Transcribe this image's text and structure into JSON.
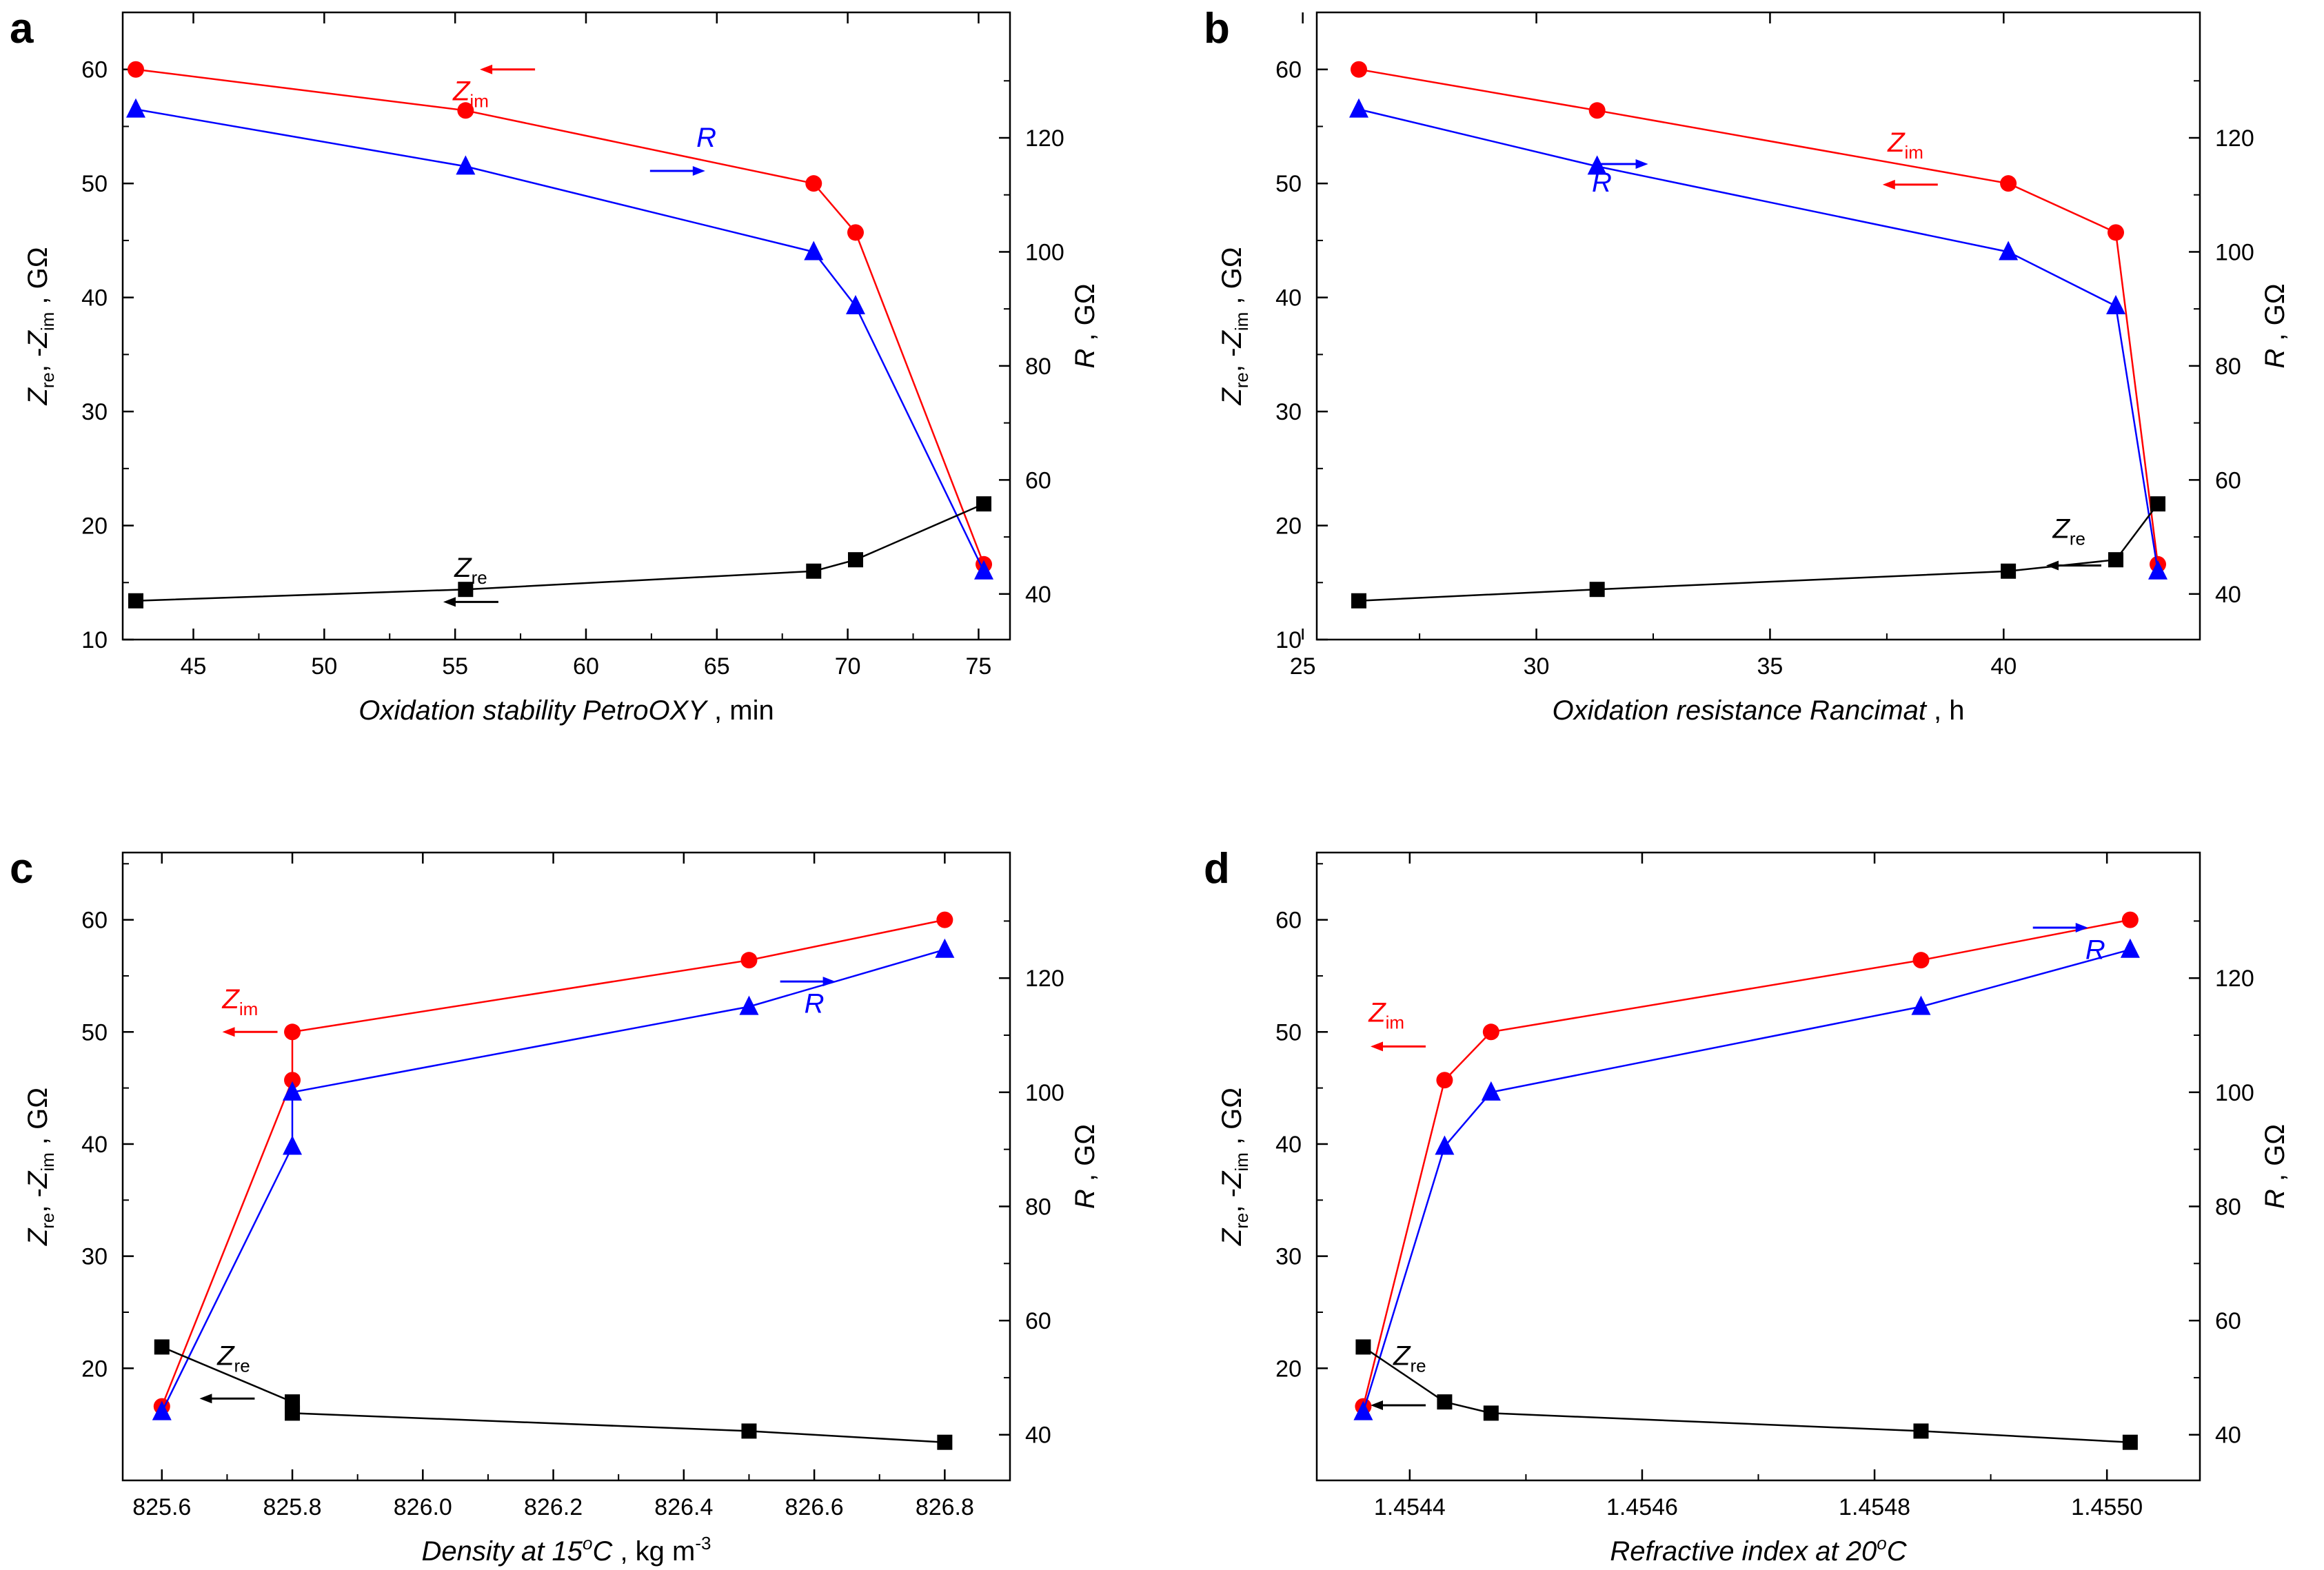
{
  "chart_data": [
    {
      "type": "line",
      "panel_label": "a",
      "xlabel": {
        "main": "Oxidation stability PetroOXY",
        "unit": "min"
      },
      "ylabel_left": {
        "sym": "Z",
        "sub": "re",
        "text2": ", -",
        "sym2": "Z",
        "sub2": "im",
        "unit": "GΩ"
      },
      "ylabel_right": {
        "sym": "R",
        "unit": "GΩ"
      },
      "xlim": [
        42.3,
        76.2
      ],
      "xticks": [
        45,
        50,
        55,
        60,
        65,
        70,
        75
      ],
      "xtick_labels": [
        "45",
        "50",
        "55",
        "60",
        "65",
        "70",
        "75"
      ],
      "ylim": [
        10,
        65
      ],
      "yticks": [
        10,
        20,
        30,
        40,
        50,
        60
      ],
      "y2lim": [
        32,
        142
      ],
      "y2ticks": [
        40,
        60,
        80,
        100,
        120
      ],
      "series": [
        {
          "name": "Zim",
          "color": "#ff0000",
          "marker": "circle",
          "axis": "left",
          "x": [
            42.8,
            55.4,
            68.7,
            70.3,
            75.2
          ],
          "y": [
            60,
            56.4,
            50,
            45.7,
            16.6
          ]
        },
        {
          "name": "R",
          "color": "#0000ff",
          "marker": "triangle",
          "axis": "right",
          "x": [
            42.8,
            55.4,
            68.7,
            70.3,
            75.2
          ],
          "y": [
            125,
            115,
            100,
            90.5,
            44
          ]
        },
        {
          "name": "Zre",
          "color": "#000000",
          "marker": "square",
          "axis": "left",
          "x": [
            42.8,
            55.4,
            68.7,
            70.3,
            75.2
          ],
          "y": [
            13.4,
            14.4,
            16,
            17,
            21.9
          ]
        }
      ],
      "annotations": [
        {
          "sym": "Z",
          "sub": "im",
          "color": "#ff0000",
          "x": 55.6,
          "y": 57.3,
          "arrow": "left",
          "ax": 57,
          "ay": 60
        },
        {
          "sym": "R",
          "sub": "",
          "color": "#0000ff",
          "x": 64.6,
          "y": 53.2,
          "arrow": "right",
          "ax": 63.5,
          "ay": 51.1
        },
        {
          "sym": "Z",
          "sub": "re",
          "color": "#000000",
          "x": 55.6,
          "y": 15.5,
          "arrow": "left",
          "ax": 55.6,
          "ay": 13.3
        }
      ]
    },
    {
      "type": "line",
      "panel_label": "b",
      "xlabel": {
        "main": "Oxidation resistance Rancimat",
        "unit": "h"
      },
      "ylabel_left": {
        "sym": "Z",
        "sub": "re",
        "text2": ", -",
        "sym2": "Z",
        "sub2": "im",
        "unit": "GΩ"
      },
      "ylabel_right": {
        "sym": "R",
        "unit": "GΩ"
      },
      "xlim": [
        25.3,
        44.2
      ],
      "xticks": [
        25,
        30,
        35,
        40
      ],
      "xtick_labels": [
        "25",
        "30",
        "35",
        "40"
      ],
      "ylim": [
        10,
        65
      ],
      "yticks": [
        10,
        20,
        30,
        40,
        50,
        60
      ],
      "y2lim": [
        32,
        142
      ],
      "y2ticks": [
        40,
        60,
        80,
        100,
        120
      ],
      "series": [
        {
          "name": "Zim",
          "color": "#ff0000",
          "marker": "circle",
          "axis": "left",
          "x": [
            26.2,
            31.3,
            40.1,
            42.4,
            43.3
          ],
          "y": [
            60,
            56.4,
            50,
            45.7,
            16.6
          ]
        },
        {
          "name": "R",
          "color": "#0000ff",
          "marker": "triangle",
          "axis": "right",
          "x": [
            26.2,
            31.3,
            40.1,
            42.4,
            43.3
          ],
          "y": [
            125,
            115,
            100,
            90.5,
            44
          ]
        },
        {
          "name": "Zre",
          "color": "#000000",
          "marker": "square",
          "axis": "left",
          "x": [
            26.2,
            31.3,
            40.1,
            42.4,
            43.3
          ],
          "y": [
            13.4,
            14.4,
            16,
            17,
            21.9
          ]
        }
      ],
      "annotations": [
        {
          "sym": "Z",
          "sub": "im",
          "color": "#ff0000",
          "x": 37.9,
          "y": 52.8,
          "arrow": "left",
          "ax": 38.0,
          "ay": 49.9
        },
        {
          "sym": "R",
          "sub": "",
          "color": "#0000ff",
          "x": 31.4,
          "y": 49.3,
          "arrow": "right",
          "ax": 31.8,
          "ay": 51.7
        },
        {
          "sym": "Z",
          "sub": "re",
          "color": "#000000",
          "x": 41.4,
          "y": 18.9,
          "arrow": "left",
          "ax": 41.5,
          "ay": 16.5
        }
      ]
    },
    {
      "type": "line",
      "panel_label": "c",
      "xlabel": {
        "main": "Density at 15",
        "sup": "o",
        "main2": "C",
        "unit": "kg m",
        "unit_sup": "-3"
      },
      "ylabel_left": {
        "sym": "Z",
        "sub": "re",
        "text2": ", -",
        "sym2": "Z",
        "sub2": "im",
        "unit": "GΩ"
      },
      "ylabel_right": {
        "sym": "R",
        "unit": "GΩ"
      },
      "xlim": [
        825.54,
        826.9
      ],
      "xticks": [
        825.6,
        825.8,
        826.0,
        826.2,
        826.4,
        826.6,
        826.8
      ],
      "xtick_labels": [
        "825.6",
        "825.8",
        "826.0",
        "826.2",
        "826.4",
        "826.6",
        "826.8"
      ],
      "ylim": [
        10,
        66
      ],
      "yticks": [
        20,
        30,
        40,
        50,
        60
      ],
      "y2lim": [
        32,
        142
      ],
      "y2ticks": [
        40,
        60,
        80,
        100,
        120
      ],
      "series": [
        {
          "name": "Zim",
          "color": "#ff0000",
          "marker": "circle",
          "axis": "left",
          "x": [
            825.6,
            825.8,
            825.8,
            826.5,
            826.8
          ],
          "y": [
            16.6,
            45.7,
            50,
            56.4,
            60
          ]
        },
        {
          "name": "R",
          "color": "#0000ff",
          "marker": "triangle",
          "axis": "right",
          "x": [
            825.6,
            825.8,
            825.8,
            826.5,
            826.8
          ],
          "y": [
            44,
            90.5,
            100,
            115,
            125
          ]
        },
        {
          "name": "Zre",
          "color": "#000000",
          "marker": "square",
          "axis": "left",
          "x": [
            825.6,
            825.8,
            825.8,
            826.5,
            826.8
          ],
          "y": [
            21.9,
            17,
            16,
            14.4,
            13.4
          ]
        }
      ],
      "annotations": [
        {
          "sym": "Z",
          "sub": "im",
          "color": "#ff0000",
          "x": 825.72,
          "y": 52.1,
          "arrow": "left",
          "ax": 825.735,
          "ay": 50
        },
        {
          "sym": "R",
          "sub": "",
          "color": "#0000ff",
          "x": 826.6,
          "y": 51.7,
          "arrow": "right",
          "ax": 826.59,
          "ay": 54.5
        },
        {
          "sym": "Z",
          "sub": "re",
          "color": "#000000",
          "x": 825.71,
          "y": 20.3,
          "arrow": "left",
          "ax": 825.7,
          "ay": 17.3
        }
      ]
    },
    {
      "type": "line",
      "panel_label": "d",
      "xlabel": {
        "main": "Refractive index at 20",
        "sup": "o",
        "main2": "C",
        "unit": "",
        "unit_sup": ""
      },
      "ylabel_left": {
        "sym": "Z",
        "sub": "re",
        "text2": ", -",
        "sym2": "Z",
        "sub2": "im",
        "unit": "GΩ"
      },
      "ylabel_right": {
        "sym": "R",
        "unit": "GΩ"
      },
      "xlim": [
        1.45432,
        1.45508
      ],
      "xticks": [
        1.4544,
        1.4546,
        1.4548,
        1.455
      ],
      "xtick_labels": [
        "1.4544",
        "1.4546",
        "1.4548",
        "1.4550"
      ],
      "ylim": [
        10,
        66
      ],
      "yticks": [
        20,
        30,
        40,
        50,
        60
      ],
      "y2lim": [
        32,
        142
      ],
      "y2ticks": [
        40,
        60,
        80,
        100,
        120
      ],
      "series": [
        {
          "name": "Zim",
          "color": "#ff0000",
          "marker": "circle",
          "axis": "left",
          "x": [
            1.45436,
            1.45443,
            1.45447,
            1.45484,
            1.45502
          ],
          "y": [
            16.6,
            45.7,
            50,
            56.4,
            60
          ]
        },
        {
          "name": "R",
          "color": "#0000ff",
          "marker": "triangle",
          "axis": "right",
          "x": [
            1.45436,
            1.45443,
            1.45447,
            1.45484,
            1.45502
          ],
          "y": [
            44,
            90.5,
            100,
            115,
            125
          ]
        },
        {
          "name": "Zre",
          "color": "#000000",
          "marker": "square",
          "axis": "left",
          "x": [
            1.45436,
            1.45443,
            1.45447,
            1.45484,
            1.45502
          ],
          "y": [
            21.9,
            17,
            16,
            14.4,
            13.4
          ]
        }
      ],
      "annotations": [
        {
          "sym": "Z",
          "sub": "im",
          "color": "#ff0000",
          "x": 1.45438,
          "y": 50.9,
          "arrow": "left",
          "ax": 1.45439,
          "ay": 48.7
        },
        {
          "sym": "R",
          "sub": "",
          "color": "#0000ff",
          "x": 1.45499,
          "y": 56.5,
          "arrow": "right",
          "ax": 1.45496,
          "ay": 59.3
        },
        {
          "sym": "Z",
          "sub": "re",
          "color": "#000000",
          "x": 1.4544,
          "y": 20.3,
          "arrow": "left",
          "ax": 1.45439,
          "ay": 16.7
        }
      ]
    }
  ]
}
